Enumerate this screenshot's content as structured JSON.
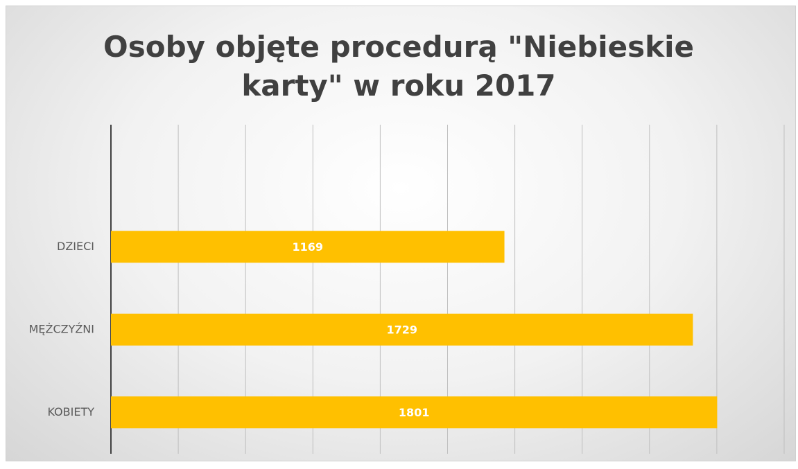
{
  "chart_data": {
    "type": "bar",
    "orientation": "horizontal",
    "title": "Osoby objęte procedurą \"Niebieskie karty\" w roku 2017",
    "categories": [
      "KOBIETY",
      "MĘŻCZYŹNI",
      "DZIECI"
    ],
    "values": [
      1801,
      1729,
      1169
    ],
    "color": "#ffc000",
    "xlim": [
      0,
      2000
    ],
    "xticks": [
      0,
      200,
      400,
      600,
      800,
      1000,
      1200,
      1400,
      1600,
      1800,
      2000
    ],
    "grid": true
  }
}
